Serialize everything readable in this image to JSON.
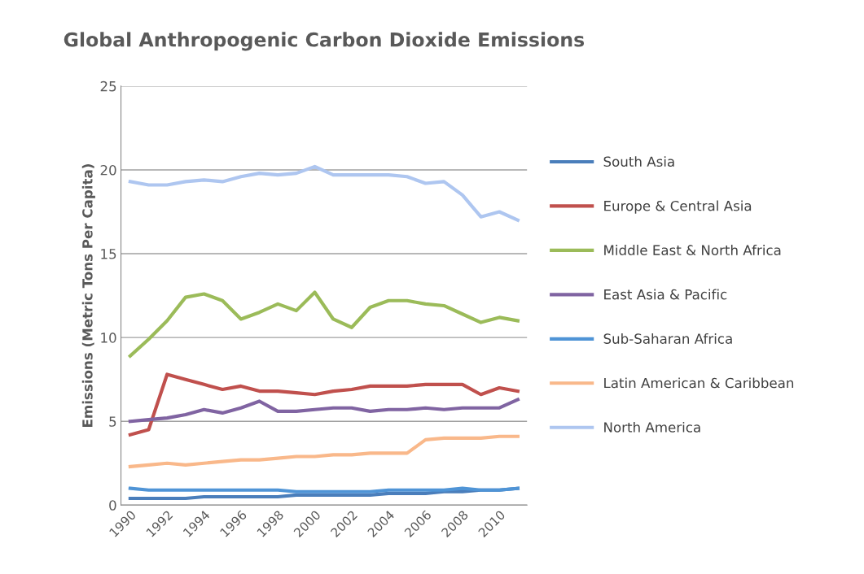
{
  "chart_data": {
    "type": "line",
    "title": "Global Anthropogenic Carbon Dioxide Emissions",
    "ylabel": "Emissions (Metric Tons Per Capita)",
    "categories": [
      "1990",
      null,
      "1992",
      null,
      "1994",
      null,
      "1996",
      null,
      "1998",
      null,
      "2000",
      null,
      "2002",
      null,
      "2004",
      null,
      "2006",
      null,
      "2008",
      null,
      "2010",
      null
    ],
    "series": [
      {
        "name": "South Asia",
        "color": "#4a7ebb",
        "values": [
          0.4,
          0.4,
          0.4,
          0.4,
          0.5,
          0.5,
          0.5,
          0.5,
          0.5,
          0.6,
          0.6,
          0.6,
          0.6,
          0.6,
          0.7,
          0.7,
          0.7,
          0.8,
          0.8,
          0.9,
          0.9,
          1.0
        ]
      },
      {
        "name": "Europe & Central Asia",
        "color": "#c0504d",
        "values": [
          4.2,
          4.5,
          7.8,
          7.5,
          7.2,
          6.9,
          7.1,
          6.8,
          6.8,
          6.7,
          6.6,
          6.8,
          6.9,
          7.1,
          7.1,
          7.1,
          7.2,
          7.2,
          7.2,
          6.6,
          7.0,
          6.8
        ]
      },
      {
        "name": "Middle East & North Africa",
        "color": "#9bbb59",
        "values": [
          8.9,
          9.9,
          11.0,
          12.4,
          12.6,
          12.2,
          11.1,
          11.5,
          12.0,
          11.6,
          12.7,
          11.1,
          10.6,
          11.8,
          12.2,
          12.2,
          12.0,
          11.9,
          11.4,
          10.9,
          11.2,
          11.0
        ]
      },
      {
        "name": "East Asia & Pacific",
        "color": "#8064a2",
        "values": [
          5.0,
          5.1,
          5.2,
          5.4,
          5.7,
          5.5,
          5.8,
          6.2,
          5.6,
          5.6,
          5.7,
          5.8,
          5.8,
          5.6,
          5.7,
          5.7,
          5.8,
          5.7,
          5.8,
          5.8,
          5.8,
          6.3
        ]
      },
      {
        "name": "Sub-Saharan Africa",
        "color": "#4f94d6",
        "values": [
          1.0,
          0.9,
          0.9,
          0.9,
          0.9,
          0.9,
          0.9,
          0.9,
          0.9,
          0.8,
          0.8,
          0.8,
          0.8,
          0.8,
          0.9,
          0.9,
          0.9,
          0.9,
          1.0,
          0.9,
          0.9,
          1.0
        ]
      },
      {
        "name": "Latin American & Caribbean",
        "color": "#f9b88a",
        "values": [
          2.3,
          2.4,
          2.5,
          2.4,
          2.5,
          2.6,
          2.7,
          2.7,
          2.8,
          2.9,
          2.9,
          3.0,
          3.0,
          3.1,
          3.1,
          3.1,
          3.9,
          4.0,
          4.0,
          4.0,
          4.1,
          4.1
        ]
      },
      {
        "name": "North America",
        "color": "#aec6f0",
        "values": [
          19.3,
          19.1,
          19.1,
          19.3,
          19.4,
          19.3,
          19.6,
          19.8,
          19.7,
          19.8,
          20.2,
          19.7,
          19.7,
          19.7,
          19.7,
          19.6,
          19.2,
          19.3,
          18.5,
          17.2,
          17.5,
          17.0
        ]
      }
    ],
    "ylim": [
      0,
      25
    ],
    "yticks": [
      0,
      5,
      10,
      15,
      20,
      25
    ],
    "grid": "y",
    "legend": "right",
    "marker": "none",
    "line_style": "solid"
  }
}
